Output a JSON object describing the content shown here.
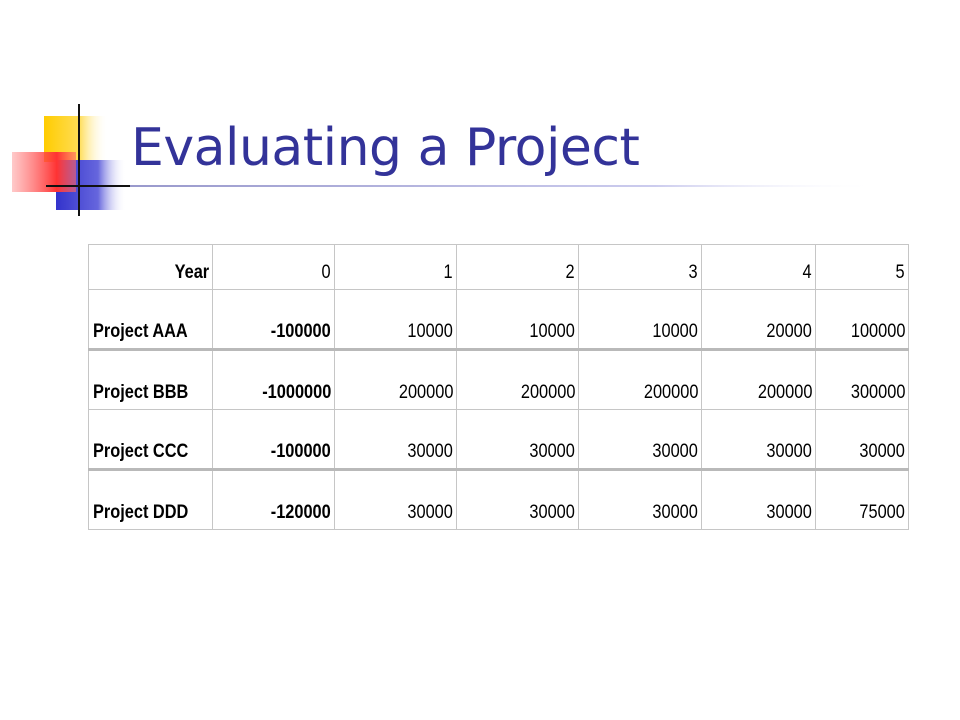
{
  "slide": {
    "title": "Evaluating a Project"
  },
  "table": {
    "header": {
      "label": "Year",
      "years": [
        "0",
        "1",
        "2",
        "3",
        "4",
        "5"
      ]
    },
    "rows": [
      {
        "label": "Project AAA",
        "values": [
          "-100000",
          "10000",
          "10000",
          "10000",
          "20000",
          "100000"
        ]
      },
      {
        "label": "Project BBB",
        "values": [
          "-1000000",
          "200000",
          "200000",
          "200000",
          "200000",
          "300000"
        ]
      },
      {
        "label": "Project CCC",
        "values": [
          "-100000",
          "30000",
          "30000",
          "30000",
          "30000",
          "30000"
        ]
      },
      {
        "label": "Project DDD",
        "values": [
          "-120000",
          "30000",
          "30000",
          "30000",
          "30000",
          "75000"
        ]
      }
    ]
  },
  "colors": {
    "title": "#333399",
    "deco_yellow": "#ffcc00",
    "deco_blue": "#3333cc",
    "deco_red": "#ff3333"
  }
}
